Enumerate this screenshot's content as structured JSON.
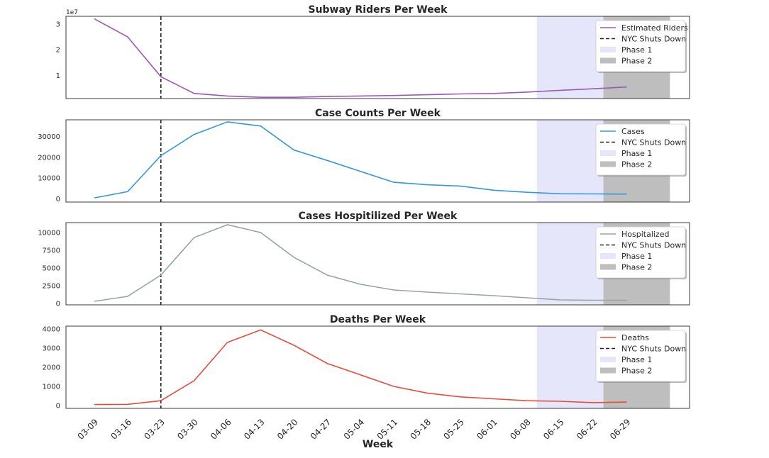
{
  "xlabel": "Week",
  "weeks": [
    "03-09",
    "03-16",
    "03-23",
    "03-30",
    "04-06",
    "04-13",
    "04-20",
    "04-27",
    "05-04",
    "05-11",
    "05-18",
    "05-25",
    "06-01",
    "06-08",
    "06-15",
    "06-22",
    "06-29"
  ],
  "shutdown_week_index": 2,
  "phase1_range": [
    13.3,
    15.3
  ],
  "phase2_range": [
    15.3,
    17.3
  ],
  "colors": {
    "riders": "#9b59b6",
    "cases": "#3498db",
    "hospitalized": "#95a5a6",
    "deaths": "#e74c3c",
    "shutdown": "#262626",
    "phase1": "#e6e6fa",
    "phase2": "#bebebe"
  },
  "legend_common": {
    "shutdown": "NYC Shuts Down",
    "phase1": "Phase 1",
    "phase2": "Phase 2"
  },
  "chart_data": [
    {
      "type": "line",
      "title": "Subway Riders Per Week",
      "series_name": "Estimated Riders",
      "color_key": "riders",
      "offset_text": "1e7",
      "ylim": [
        0.1,
        3.3
      ],
      "yticks": [
        1,
        2,
        3
      ],
      "ytick_labels": [
        "1",
        "2",
        "3"
      ],
      "values": [
        3.2,
        2.5,
        0.95,
        0.3,
        0.2,
        0.15,
        0.15,
        0.18,
        0.2,
        0.22,
        0.25,
        0.28,
        0.3,
        0.35,
        0.42,
        0.48,
        0.55
      ]
    },
    {
      "type": "line",
      "title": "Case Counts Per Week",
      "series_name": "Cases",
      "color_key": "cases",
      "offset_text": "",
      "ylim": [
        -1500,
        38000
      ],
      "yticks": [
        0,
        10000,
        20000,
        30000
      ],
      "ytick_labels": [
        "0",
        "10000",
        "20000",
        "30000"
      ],
      "values": [
        500,
        3500,
        20800,
        31000,
        37000,
        35000,
        23500,
        18500,
        13200,
        8000,
        6800,
        6200,
        4200,
        3200,
        2500,
        2400,
        2300
      ]
    },
    {
      "type": "line",
      "title": "Cases Hospitilized Per Week",
      "series_name": "Hospitalized",
      "color_key": "hospitalized",
      "offset_text": "",
      "ylim": [
        -200,
        11400
      ],
      "yticks": [
        0,
        2500,
        5000,
        7500,
        10000
      ],
      "ytick_labels": [
        "0",
        "2500",
        "5000",
        "7500",
        "10000"
      ],
      "values": [
        300,
        1000,
        4000,
        9300,
        11100,
        10000,
        6500,
        4000,
        2700,
        1900,
        1600,
        1350,
        1100,
        800,
        500,
        450,
        450
      ]
    },
    {
      "type": "line",
      "title": "Deaths Per Week",
      "series_name": "Deaths",
      "color_key": "deaths",
      "offset_text": "",
      "ylim": [
        -150,
        4150
      ],
      "yticks": [
        0,
        1000,
        2000,
        3000,
        4000
      ],
      "ytick_labels": [
        "0",
        "1000",
        "2000",
        "3000",
        "4000"
      ],
      "values": [
        50,
        60,
        250,
        1300,
        3300,
        3950,
        3150,
        2200,
        1600,
        1000,
        650,
        450,
        350,
        250,
        220,
        150,
        180
      ]
    }
  ]
}
